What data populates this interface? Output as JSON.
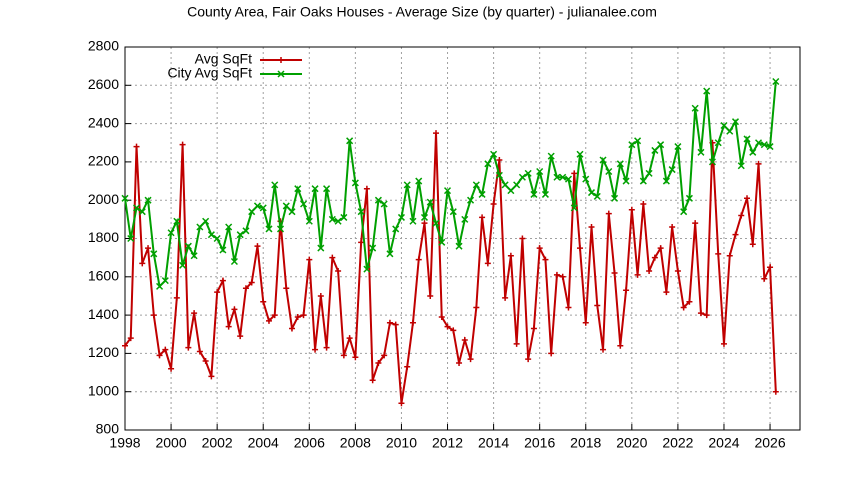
{
  "chart_data": {
    "type": "line",
    "title": "County Area, Fair Oaks Houses - Average Size (by quarter) - julianalee.com",
    "x": [
      1998,
      1998.25,
      1998.5,
      1998.75,
      1999,
      1999.25,
      1999.5,
      1999.75,
      2000,
      2000.25,
      2000.5,
      2000.75,
      2001,
      2001.25,
      2001.5,
      2001.75,
      2002,
      2002.25,
      2002.5,
      2002.75,
      2003,
      2003.25,
      2003.5,
      2003.75,
      2004,
      2004.25,
      2004.5,
      2004.75,
      2005,
      2005.25,
      2005.5,
      2005.75,
      2006,
      2006.25,
      2006.5,
      2006.75,
      2007,
      2007.25,
      2007.5,
      2007.75,
      2008,
      2008.25,
      2008.5,
      2008.75,
      2009,
      2009.25,
      2009.5,
      2009.75,
      2010,
      2010.25,
      2010.5,
      2010.75,
      2011,
      2011.25,
      2011.5,
      2011.75,
      2012,
      2012.25,
      2012.5,
      2012.75,
      2013,
      2013.25,
      2013.5,
      2013.75,
      2014,
      2014.25,
      2014.5,
      2014.75,
      2015,
      2015.25,
      2015.5,
      2015.75,
      2016,
      2016.25,
      2016.5,
      2016.75,
      2017,
      2017.25,
      2017.5,
      2017.75,
      2018,
      2018.25,
      2018.5,
      2018.75,
      2019,
      2019.25,
      2019.5,
      2019.75,
      2020,
      2020.25,
      2020.5,
      2020.75,
      2021,
      2021.25,
      2021.5,
      2021.75,
      2022,
      2022.25,
      2022.5,
      2022.75,
      2023,
      2023.25,
      2023.5,
      2023.75,
      2024,
      2024.25,
      2024.5,
      2024.75,
      2025,
      2025.25,
      2025.5,
      2025.75,
      2026,
      2026.25
    ],
    "series": [
      {
        "name": "Avg SqFt",
        "color": "#c00000",
        "marker": "plus",
        "values": [
          1240,
          1280,
          2280,
          1670,
          1750,
          1400,
          1190,
          1220,
          1120,
          1490,
          2290,
          1230,
          1410,
          1210,
          1160,
          1080,
          1520,
          1580,
          1340,
          1430,
          1290,
          1540,
          1570,
          1760,
          1470,
          1370,
          1400,
          1890,
          1540,
          1330,
          1390,
          1400,
          1690,
          1220,
          1500,
          1230,
          1700,
          1630,
          1190,
          1280,
          1180,
          1780,
          2060,
          1060,
          1150,
          1190,
          1360,
          1350,
          940,
          1130,
          1360,
          1690,
          1880,
          1500,
          2350,
          1390,
          1340,
          1320,
          1150,
          1270,
          1170,
          1440,
          1910,
          1670,
          1980,
          2210,
          1490,
          1710,
          1250,
          1800,
          1170,
          1330,
          1750,
          1690,
          1200,
          1610,
          1600,
          1440,
          2140,
          1750,
          1360,
          1860,
          1450,
          1220,
          1930,
          1620,
          1240,
          1530,
          1950,
          1610,
          1980,
          1630,
          1700,
          1750,
          1520,
          1860,
          1630,
          1440,
          1470,
          1880,
          1410,
          1400,
          2300,
          1720,
          1250,
          1710,
          1820,
          1920,
          2010,
          1770,
          2190,
          1590,
          1650,
          1000
        ]
      },
      {
        "name": "City Avg SqFt",
        "color": "#00a000",
        "marker": "cross",
        "values": [
          2010,
          1800,
          1960,
          1940,
          2000,
          1720,
          1550,
          1580,
          1830,
          1890,
          1660,
          1760,
          1710,
          1860,
          1890,
          1820,
          1800,
          1740,
          1860,
          1680,
          1820,
          1840,
          1940,
          1970,
          1960,
          1850,
          2080,
          1850,
          1970,
          1940,
          2060,
          1980,
          1890,
          2060,
          1750,
          2060,
          1900,
          1890,
          1910,
          2310,
          2090,
          1940,
          1640,
          1750,
          2000,
          1980,
          1720,
          1850,
          1910,
          2080,
          1890,
          2100,
          1910,
          1990,
          1880,
          1780,
          2050,
          1940,
          1760,
          1900,
          2000,
          2080,
          2030,
          2190,
          2240,
          2130,
          2080,
          2050,
          2080,
          2120,
          2140,
          2030,
          2150,
          2030,
          2230,
          2120,
          2120,
          2110,
          1960,
          2240,
          2110,
          2040,
          2020,
          2210,
          2150,
          2010,
          2190,
          2100,
          2290,
          2310,
          2100,
          2140,
          2260,
          2290,
          2100,
          2160,
          2280,
          1940,
          2010,
          2480,
          2250,
          2570,
          2200,
          2300,
          2390,
          2360,
          2410,
          2180,
          2320,
          2250,
          2300,
          2290,
          2280,
          2620
        ]
      }
    ],
    "xlim": [
      1998,
      2027.3
    ],
    "xticks": [
      1998,
      2000,
      2002,
      2004,
      2006,
      2008,
      2010,
      2012,
      2014,
      2016,
      2018,
      2020,
      2022,
      2024,
      2026
    ],
    "ylim": [
      800,
      2800
    ],
    "yticks": [
      800,
      1000,
      1200,
      1400,
      1600,
      1800,
      2000,
      2200,
      2400,
      2600,
      2800
    ],
    "grid": true,
    "legend": "top-left"
  }
}
